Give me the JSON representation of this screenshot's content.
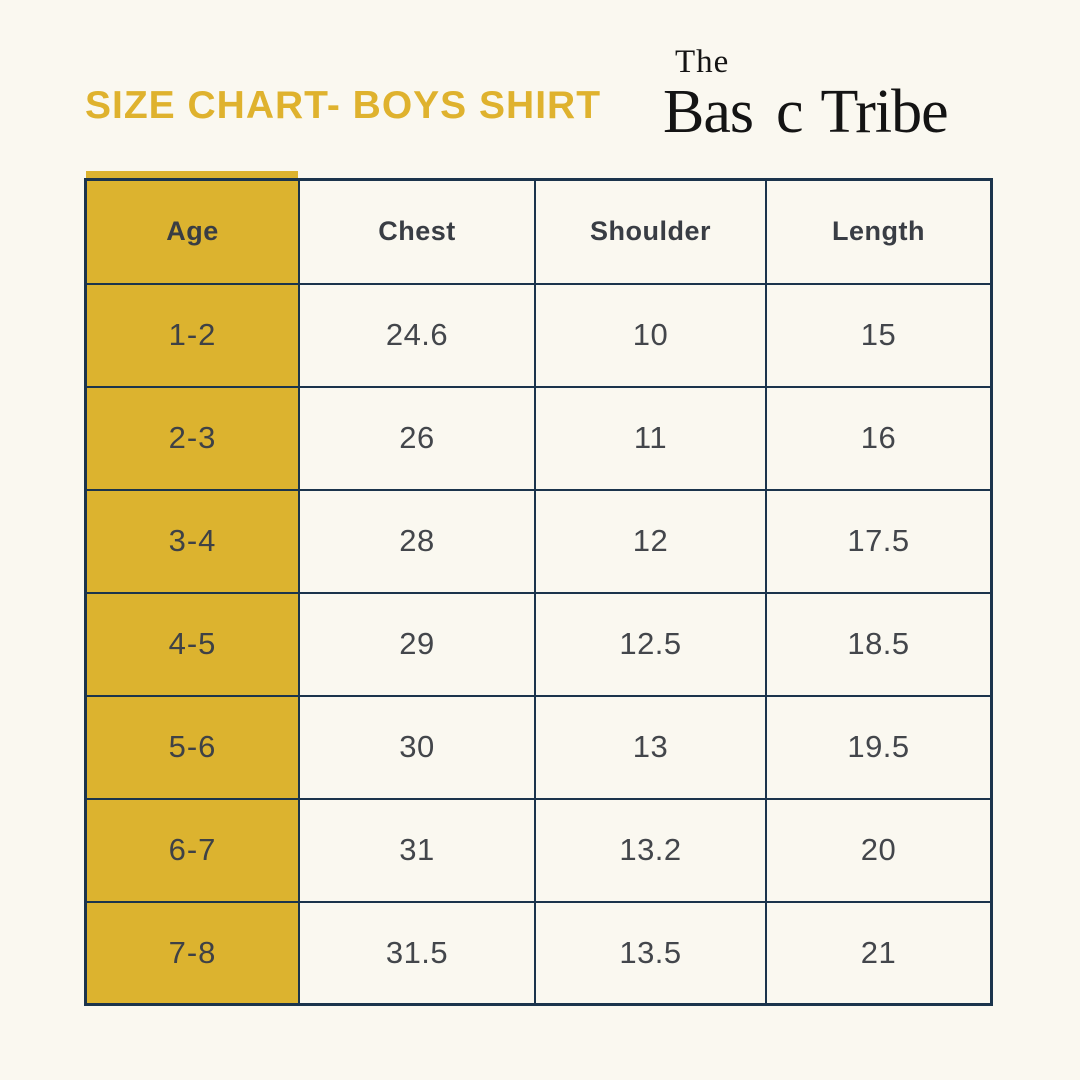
{
  "title": "SIZE CHART- BOYS SHIRT",
  "logo": {
    "the": "The",
    "basic_before_arrow": "Bas",
    "basic_after_arrow": "c",
    "tribe": "Tribe"
  },
  "chart_data": {
    "type": "table",
    "title": "SIZE CHART- BOYS SHIRT",
    "columns": [
      "Age",
      "Chest",
      "Shoulder",
      "Length"
    ],
    "rows": [
      [
        "1-2",
        "24.6",
        "10",
        "15"
      ],
      [
        "2-3",
        "26",
        "11",
        "16"
      ],
      [
        "3-4",
        "28",
        "12",
        "17.5"
      ],
      [
        "4-5",
        "29",
        "12.5",
        "18.5"
      ],
      [
        "5-6",
        "30",
        "13",
        "19.5"
      ],
      [
        "6-7",
        "31",
        "13.2",
        "20"
      ],
      [
        "7-8",
        "31.5",
        "13.5",
        "21"
      ]
    ]
  },
  "colors": {
    "background": "#FAF8F0",
    "gold_accent": "#DCB32F",
    "title_gold": "#DFB22E",
    "border_navy": "#1B344C",
    "cell_text": "#43464B",
    "header_text": "#393D44",
    "logo_black": "#141414",
    "arrow_gold": "#E6AF25",
    "fletching_gold": "#F4C829"
  }
}
